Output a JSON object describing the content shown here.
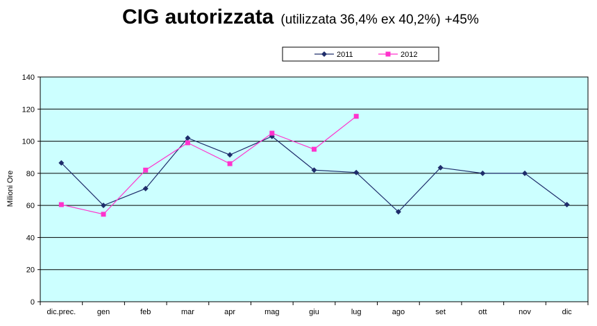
{
  "chart_data": {
    "type": "line",
    "title": "CIG autorizzata",
    "subtitle": "(utilizzata 36,4% ex 40,2%)",
    "title_suffix": "+45%",
    "xlabel": "",
    "ylabel": "Milioni Ore",
    "categories": [
      "dic.prec.",
      "gen",
      "feb",
      "mar",
      "apr",
      "mag",
      "giu",
      "lug",
      "ago",
      "set",
      "ott",
      "nov",
      "dic"
    ],
    "ylim": [
      0,
      140
    ],
    "yticks": [
      0,
      20,
      40,
      60,
      80,
      100,
      120,
      140
    ],
    "grid": true,
    "legend_position": "top-center",
    "plot_background": "#ccffff",
    "series": [
      {
        "name": "2011",
        "color": "#1f2d6b",
        "marker": "diamond",
        "values": [
          86.5,
          60,
          70.5,
          102,
          91.5,
          103,
          82,
          80.5,
          56,
          83.5,
          80,
          80,
          60.5
        ]
      },
      {
        "name": "2012",
        "color": "#ff33cc",
        "marker": "square",
        "values": [
          60.5,
          54.5,
          82,
          99,
          86,
          105,
          95,
          115.5,
          null,
          null,
          null,
          null,
          null
        ]
      }
    ]
  }
}
